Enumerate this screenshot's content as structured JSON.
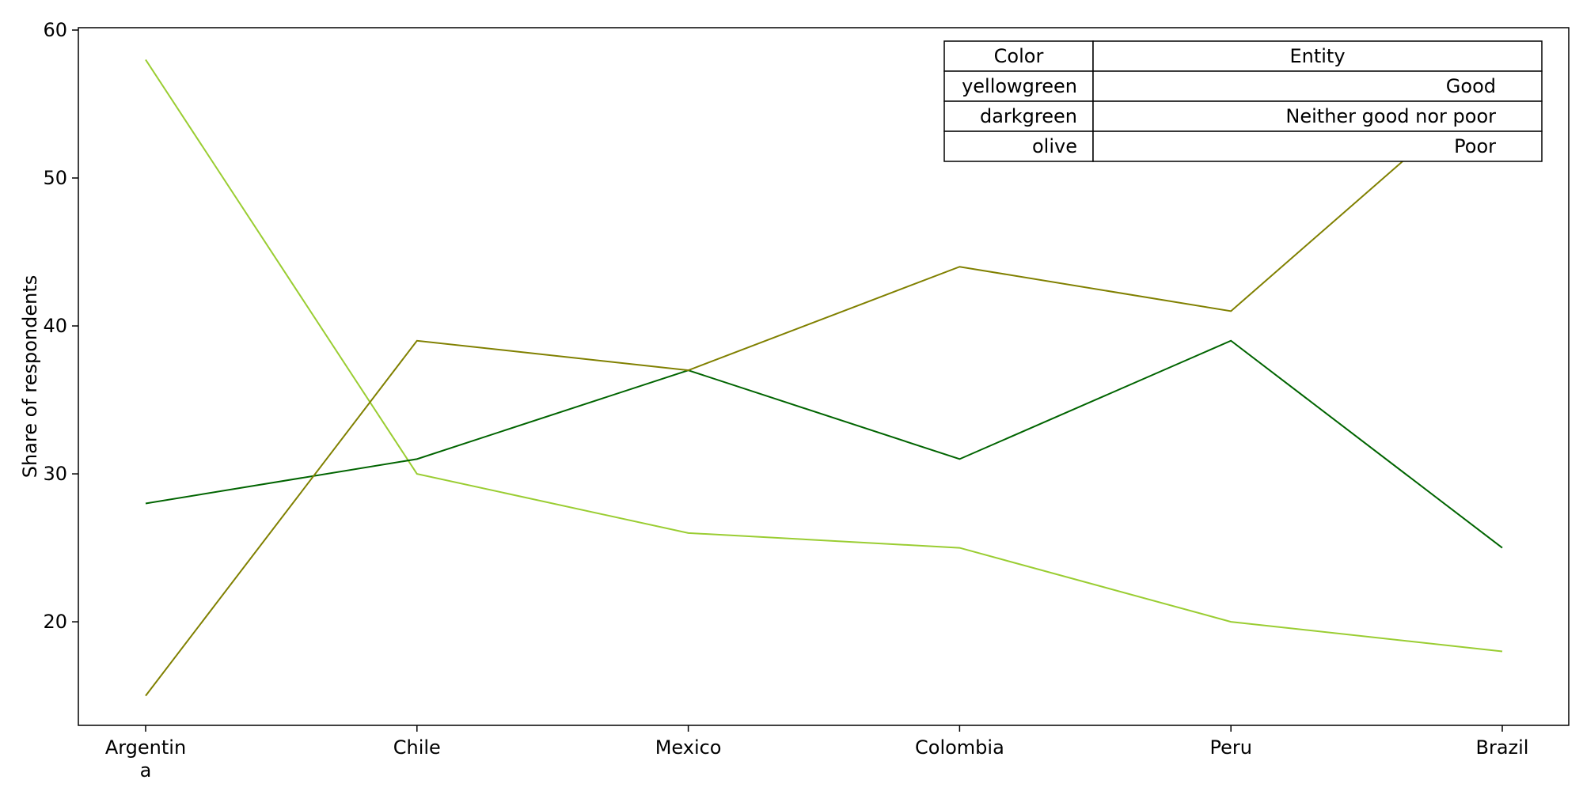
{
  "chart_data": {
    "type": "line",
    "title": "",
    "xlabel": "",
    "ylabel": "Share of respondents",
    "categories": [
      "Argentina",
      "Chile",
      "Mexico",
      "Colombia",
      "Peru",
      "Brazil"
    ],
    "ylim": [
      13,
      60
    ],
    "yticks": [
      20,
      30,
      40,
      50,
      60
    ],
    "grid": false,
    "legend_placement": "top-right",
    "legend_table": {
      "headers": [
        "Color",
        "Entity"
      ],
      "rows": [
        [
          "yellowgreen",
          "Good"
        ],
        [
          "darkgreen",
          "Neither good nor poor"
        ],
        [
          "olive",
          "Poor"
        ]
      ]
    },
    "series": [
      {
        "color": "#9acd32",
        "values": [
          58,
          30,
          26,
          25,
          20,
          18
        ]
      },
      {
        "color": "#006400",
        "values": [
          28,
          31,
          37,
          31,
          39,
          25
        ]
      },
      {
        "color": "#808000",
        "values": [
          15,
          39,
          37,
          44,
          41,
          57
        ]
      }
    ]
  }
}
